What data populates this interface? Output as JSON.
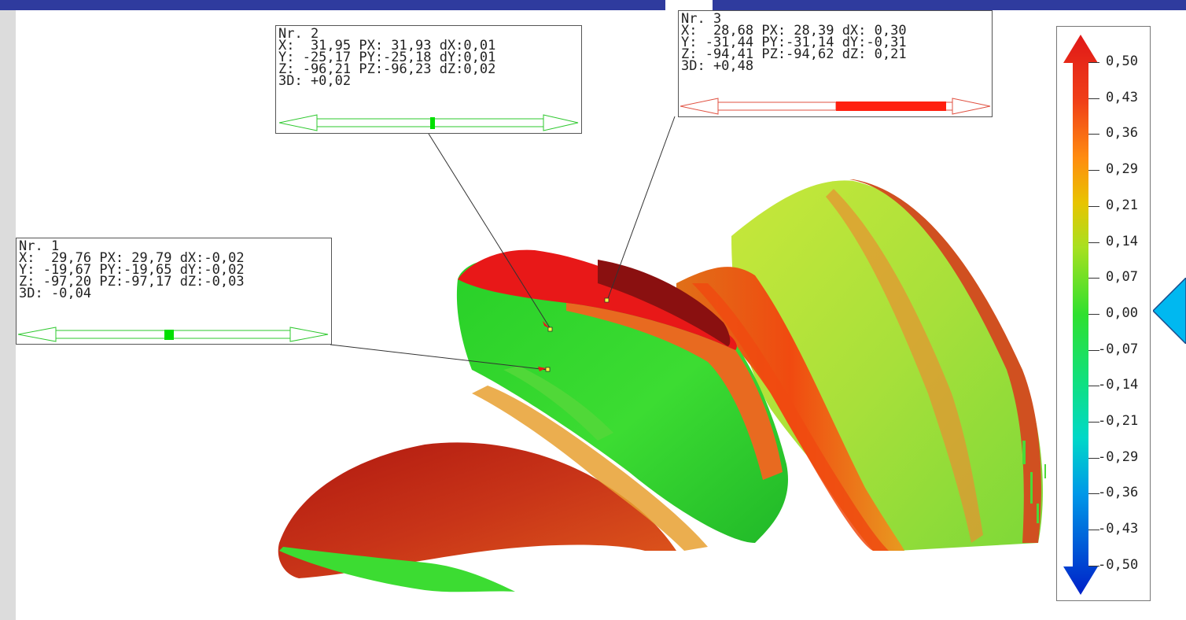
{
  "callouts": [
    {
      "id": "nr1",
      "title": "Nr. 1",
      "x": "X:  29,76 PX: 29,79 dX:-0,02",
      "y": "Y: -19,67 PY:-19,65 dY:-0,02",
      "z": "Z: -97,20 PZ:-97,17 dZ:-0,03",
      "d3": "3D: -0,04",
      "indicator_color": "#00e000",
      "deviation": -0.04
    },
    {
      "id": "nr2",
      "title": "Nr. 2",
      "x": "X:  31,95 PX: 31,93 dX:0,01",
      "y": "Y: -25,17 PY:-25,18 dY:0,01",
      "z": "Z: -96,21 PZ:-96,23 dZ:0,02",
      "d3": "3D: +0,02",
      "indicator_color": "#00e000",
      "deviation": 0.02
    },
    {
      "id": "nr3",
      "title": "Nr. 3",
      "x": "X:  28,68 PX: 28,39 dX: 0,30",
      "y": "Y: -31,44 PY:-31,14 dY:-0,31",
      "z": "Z: -94,41 PZ:-94,62 dZ: 0,21",
      "d3": "3D: +0,48",
      "indicator_color": "#ff2010",
      "deviation": 0.48
    }
  ],
  "legend": {
    "ticks": [
      "0,50",
      "0,43",
      "0,36",
      "0,29",
      "0,21",
      "0,14",
      "0,07",
      "0,00",
      "-0,07",
      "-0,14",
      "-0,21",
      "-0,29",
      "-0,36",
      "-0,43",
      "-0,50"
    ],
    "colors": {
      "max": "#e01818",
      "high": "#ff6a00",
      "upper_mid": "#e8c400",
      "mid": "#2fe02f",
      "lower_mid": "#00e0b0",
      "low": "#009be0",
      "min": "#0020c8"
    }
  },
  "theme": {
    "header_color": "#2f3b9e",
    "marker_color": "#00b8f0"
  }
}
